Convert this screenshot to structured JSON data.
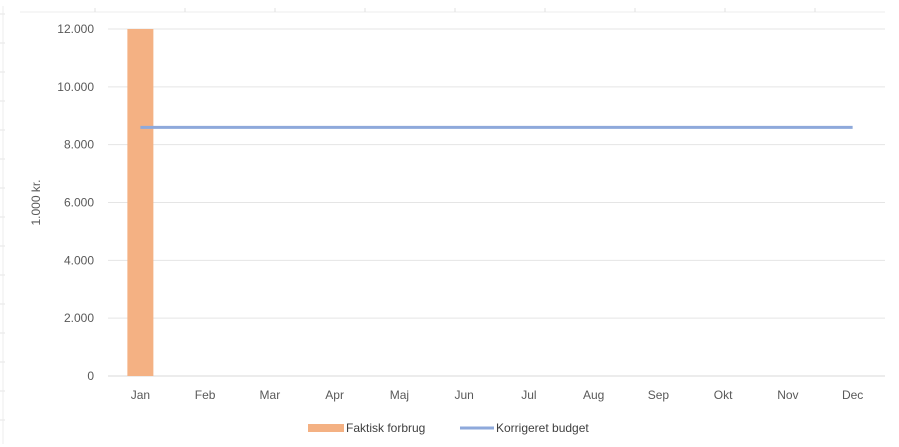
{
  "chart_data": {
    "type": "bar",
    "title": "",
    "xlabel": "",
    "ylabel": "1.000 kr.",
    "ylim": [
      0,
      12000
    ],
    "y_ticks": [
      "0",
      "2.000",
      "4.000",
      "6.000",
      "8.000",
      "10.000",
      "12.000"
    ],
    "y_tick_values": [
      0,
      2000,
      4000,
      6000,
      8000,
      10000,
      12000
    ],
    "categories": [
      "Jan",
      "Feb",
      "Mar",
      "Apr",
      "Maj",
      "Jun",
      "Jul",
      "Aug",
      "Sep",
      "Okt",
      "Nov",
      "Dec"
    ],
    "grid": true,
    "legend_position": "bottom",
    "series": [
      {
        "name": "Faktisk forbrug",
        "kind": "bar",
        "color": "#F4B183",
        "values": [
          12000,
          null,
          null,
          null,
          null,
          null,
          null,
          null,
          null,
          null,
          null,
          null
        ]
      },
      {
        "name": "Korrigeret budget",
        "kind": "line",
        "color": "#8EA9DB",
        "values": [
          8600,
          8600,
          8600,
          8600,
          8600,
          8600,
          8600,
          8600,
          8600,
          8600,
          8600,
          8600
        ]
      }
    ]
  }
}
